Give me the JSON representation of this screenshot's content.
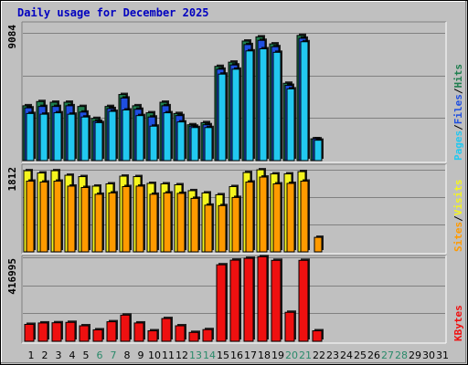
{
  "title": "Daily usage for December 2025",
  "colors": {
    "background": "#c0c0c0",
    "title": "#0000c0",
    "hits": "#1f7f4f",
    "files": "#1f4fe0",
    "pages": "#22c8f0",
    "visits": "#f5f51e",
    "sites": "#ff9a00",
    "kbytes": "#ef1010",
    "weekend_label": "#2a8a6a",
    "weekday_label": "#000000",
    "gridline": "#808080"
  },
  "days": [
    "1",
    "2",
    "3",
    "4",
    "5",
    "6",
    "7",
    "8",
    "9",
    "10",
    "11",
    "12",
    "13",
    "14",
    "15",
    "16",
    "17",
    "18",
    "19",
    "20",
    "21",
    "22",
    "23",
    "24",
    "25",
    "26",
    "27",
    "28",
    "29",
    "30",
    "31"
  ],
  "weekend_days": [
    "6",
    "7",
    "13",
    "14",
    "20",
    "21",
    "27",
    "28"
  ],
  "chart_data": [
    {
      "type": "bar",
      "panel": "hits-files-pages",
      "ymax_label": "9084",
      "ylim": [
        0,
        9084
      ],
      "right_axis_label": {
        "pages": "Pages",
        "files": "Files",
        "hits": "Hits",
        "sep": "/"
      },
      "series": [
        {
          "name": "Hits",
          "values": [
            3900,
            4200,
            4150,
            4150,
            3850,
            3000,
            3850,
            4700,
            3900,
            3400,
            4150,
            3350,
            2550,
            2700,
            6700,
            7000,
            8500,
            8800,
            8300,
            5500,
            8900,
            1550,
            0,
            0,
            0,
            0,
            0,
            0,
            0,
            0,
            0
          ]
        },
        {
          "name": "Files",
          "values": [
            3750,
            3850,
            3850,
            3900,
            3450,
            2800,
            3700,
            4450,
            3650,
            3100,
            3900,
            3200,
            2450,
            2550,
            6500,
            6800,
            8250,
            8550,
            8100,
            5350,
            8700,
            1550,
            0,
            0,
            0,
            0,
            0,
            0,
            0,
            0,
            0
          ]
        },
        {
          "name": "Pages",
          "values": [
            3350,
            3300,
            3400,
            3300,
            3100,
            2700,
            3500,
            3600,
            3200,
            2450,
            3400,
            2750,
            2350,
            2350,
            6150,
            6500,
            7800,
            7950,
            7700,
            5100,
            8450,
            1450,
            0,
            0,
            0,
            0,
            0,
            0,
            0,
            0,
            0
          ]
        }
      ]
    },
    {
      "type": "bar",
      "panel": "visits-sites",
      "ymax_label": "1812",
      "ylim": [
        0,
        1812
      ],
      "right_axis_label": {
        "sites": "Sites",
        "visits": "Visits",
        "sep": "/"
      },
      "series": [
        {
          "name": "Visits",
          "values": [
            1790,
            1740,
            1790,
            1690,
            1660,
            1450,
            1500,
            1670,
            1660,
            1510,
            1500,
            1480,
            1350,
            1300,
            1260,
            1440,
            1750,
            1810,
            1720,
            1720,
            1770,
            0,
            0,
            0,
            0,
            0,
            0,
            0,
            0,
            0,
            0
          ]
        },
        {
          "name": "Sites",
          "values": [
            1560,
            1540,
            1560,
            1450,
            1420,
            1270,
            1300,
            1440,
            1450,
            1270,
            1300,
            1290,
            1180,
            1030,
            1020,
            1200,
            1540,
            1650,
            1500,
            1510,
            1560,
            320,
            0,
            0,
            0,
            0,
            0,
            0,
            0,
            0,
            0
          ]
        }
      ]
    },
    {
      "type": "bar",
      "panel": "kbytes",
      "ymax_label": "416995",
      "ylim": [
        0,
        416995
      ],
      "right_axis_label": {
        "kbytes": "KBytes"
      },
      "series": [
        {
          "name": "KBytes",
          "values": [
            84000,
            91000,
            92000,
            94000,
            77000,
            57000,
            97000,
            130000,
            91000,
            52000,
            113000,
            77000,
            44000,
            58000,
            380000,
            403000,
            412000,
            420000,
            402000,
            144000,
            402000,
            52000,
            0,
            0,
            0,
            0,
            0,
            0,
            0,
            0,
            0
          ]
        }
      ]
    }
  ]
}
